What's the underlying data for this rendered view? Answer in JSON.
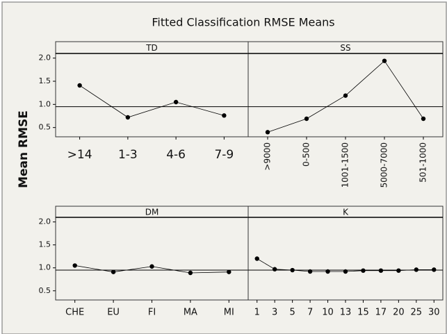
{
  "title": "Fitted Classification RMSE Means",
  "ylabel": "Mean RMSE",
  "chart_data": [
    {
      "type": "line",
      "title": "TD",
      "categories": [
        ">14",
        "1-3",
        "4-6",
        "7-9"
      ],
      "values": [
        1.41,
        0.72,
        1.05,
        0.76
      ],
      "color": "#000000",
      "reference_line": 0.95,
      "ylim": [
        0.3,
        2.1
      ],
      "yticks": [
        {
          "value": 2.0,
          "label": "2.0"
        },
        1.5,
        {
          "value": 1.0,
          "label": "1.0"
        },
        0.5
      ]
    },
    {
      "type": "line",
      "title": "SS",
      "categories": [
        ">9000",
        "0-500",
        "1001-1500",
        "5000-7000",
        "501-1000"
      ],
      "values": [
        0.4,
        0.69,
        1.19,
        1.94,
        0.69
      ],
      "color": "#000000",
      "reference_line": 0.95,
      "ylim": [
        0.3,
        2.1
      ]
    },
    {
      "type": "line",
      "title": "DM",
      "categories": [
        "CHE",
        "EU",
        "FI",
        "MA",
        "MI"
      ],
      "values": [
        1.05,
        0.91,
        1.03,
        0.89,
        0.91
      ],
      "color": "#000000",
      "reference_line": 0.95,
      "ylim": [
        0.3,
        2.1
      ],
      "yticks": [
        {
          "value": 2.0,
          "label": "2.0"
        },
        1.5,
        {
          "value": 1.0,
          "label": "1.0"
        },
        0.5
      ]
    },
    {
      "type": "line",
      "title": "K",
      "categories": [
        "1",
        "3",
        "5",
        "7",
        "10",
        "13",
        "15",
        "17",
        "20",
        "25",
        "30"
      ],
      "values": [
        1.2,
        0.97,
        0.95,
        0.92,
        0.92,
        0.92,
        0.94,
        0.94,
        0.94,
        0.96,
        0.96
      ],
      "color": "#000000",
      "reference_line": 0.95,
      "ylim": [
        0.3,
        2.1
      ]
    }
  ]
}
